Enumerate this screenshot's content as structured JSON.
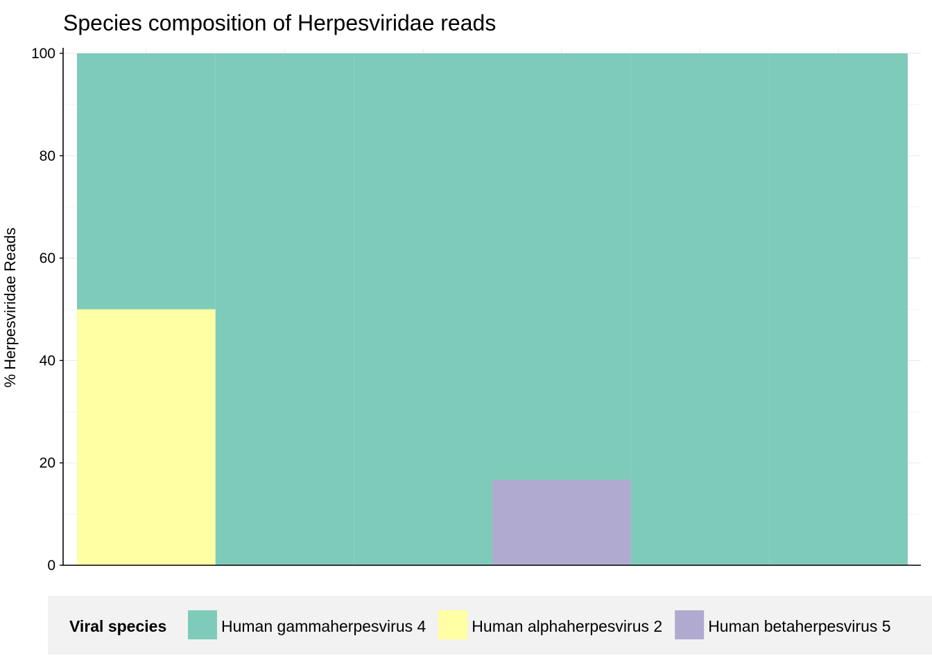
{
  "chart_data": {
    "type": "bar",
    "stacking": "overlay",
    "title": "Species composition of Herpesviridae reads",
    "xlabel": "",
    "ylabel": "% Herpesviridae Reads",
    "ylim": [
      0,
      100
    ],
    "yticks": [
      0,
      20,
      40,
      60,
      80,
      100
    ],
    "grid": true,
    "legend_position": "bottom",
    "legend_title": "Viral species",
    "categories": [
      "",
      "",
      "",
      "",
      "",
      ""
    ],
    "series": [
      {
        "name": "Human gammaherpesvirus 4",
        "color": "#7fcbba",
        "values": [
          100,
          100,
          100,
          100,
          100,
          100
        ]
      },
      {
        "name": "Human alphaherpesvirus 2",
        "color": "#ffffa3",
        "values": [
          50,
          0,
          0,
          0,
          0,
          0
        ]
      },
      {
        "name": "Human betaherpesvirus 5",
        "color": "#b0aad0",
        "values": [
          0,
          0,
          0,
          16.7,
          0,
          0
        ]
      }
    ]
  }
}
